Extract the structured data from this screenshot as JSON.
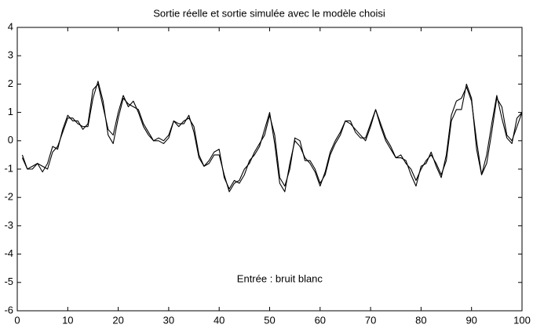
{
  "chart_data": {
    "type": "line",
    "title": "Sortie réelle et sortie simulée avec le modèle choisi",
    "annotations": [
      "Entrée : bruit blanc"
    ],
    "x": [
      1,
      2,
      3,
      4,
      5,
      6,
      7,
      8,
      9,
      10,
      11,
      12,
      13,
      14,
      15,
      16,
      17,
      18,
      19,
      20,
      21,
      22,
      23,
      24,
      25,
      26,
      27,
      28,
      29,
      30,
      31,
      32,
      33,
      34,
      35,
      36,
      37,
      38,
      39,
      40,
      41,
      42,
      43,
      44,
      45,
      46,
      47,
      48,
      49,
      50,
      51,
      52,
      53,
      54,
      55,
      56,
      57,
      58,
      59,
      60,
      61,
      62,
      63,
      64,
      65,
      66,
      67,
      68,
      69,
      70,
      71,
      72,
      73,
      74,
      75,
      76,
      77,
      78,
      79,
      80,
      81,
      82,
      83,
      84,
      85,
      86,
      87,
      88,
      89,
      90,
      91,
      92,
      93,
      94,
      95,
      96,
      97,
      98,
      99,
      100
    ],
    "series": [
      {
        "color": "#000000",
        "values": [
          -0.5,
          -1.0,
          -0.9,
          -0.8,
          -1.1,
          -0.8,
          -0.2,
          -0.3,
          0.4,
          0.9,
          0.7,
          0.7,
          0.4,
          0.6,
          1.8,
          2.0,
          1.2,
          0.4,
          0.2,
          1.0,
          1.6,
          1.2,
          1.4,
          1.0,
          0.5,
          0.2,
          0.0,
          0.1,
          0.0,
          0.2,
          0.7,
          0.6,
          0.6,
          0.9,
          0.3,
          -0.6,
          -0.9,
          -0.7,
          -0.4,
          -0.3,
          -1.3,
          -1.7,
          -1.4,
          -1.5,
          -1.2,
          -0.7,
          -0.5,
          -0.2,
          0.4,
          1.0,
          -0.1,
          -1.5,
          -1.8,
          -0.8,
          0.0,
          -0.2,
          -0.6,
          -0.8,
          -1.1,
          -1.6,
          -1.1,
          -0.4,
          0.0,
          0.3,
          0.7,
          0.7,
          0.3,
          0.1,
          0.1,
          0.6,
          1.1,
          0.5,
          0.0,
          -0.3,
          -0.6,
          -0.6,
          -0.7,
          -1.2,
          -1.6,
          -0.9,
          -0.8,
          -0.4,
          -0.9,
          -1.3,
          -0.5,
          0.9,
          1.4,
          1.5,
          1.9,
          1.4,
          0.0,
          -1.2,
          -0.5,
          0.6,
          1.6,
          0.8,
          0.1,
          -0.1,
          0.8,
          1.0
        ]
      },
      {
        "color": "#000000",
        "values": [
          -0.6,
          -1.0,
          -1.0,
          -0.8,
          -0.9,
          -1.0,
          -0.4,
          -0.2,
          0.3,
          0.8,
          0.8,
          0.6,
          0.5,
          0.5,
          1.5,
          2.1,
          1.4,
          0.2,
          -0.1,
          0.8,
          1.5,
          1.3,
          1.2,
          1.1,
          0.6,
          0.3,
          0.0,
          0.0,
          -0.1,
          0.1,
          0.7,
          0.5,
          0.7,
          0.8,
          0.5,
          -0.5,
          -0.9,
          -0.8,
          -0.5,
          -0.5,
          -1.2,
          -1.8,
          -1.5,
          -1.4,
          -1.0,
          -0.8,
          -0.4,
          -0.1,
          0.2,
          0.9,
          0.2,
          -1.3,
          -1.6,
          -1.0,
          0.1,
          0.0,
          -0.7,
          -0.7,
          -1.0,
          -1.5,
          -1.2,
          -0.5,
          -0.1,
          0.2,
          0.7,
          0.6,
          0.4,
          0.2,
          0.0,
          0.5,
          1.1,
          0.6,
          0.1,
          -0.2,
          -0.6,
          -0.5,
          -0.8,
          -1.0,
          -1.4,
          -1.0,
          -0.7,
          -0.5,
          -0.8,
          -1.2,
          -0.7,
          0.7,
          1.1,
          1.1,
          2.0,
          1.5,
          -0.3,
          -1.2,
          -0.8,
          0.3,
          1.5,
          1.2,
          0.2,
          0.0,
          0.5,
          1.0
        ]
      }
    ],
    "xlim": [
      0,
      100
    ],
    "xticks": [
      0,
      10,
      20,
      30,
      40,
      50,
      60,
      70,
      80,
      90,
      100
    ],
    "ylim": [
      -6,
      4
    ],
    "yticks": [
      -6,
      -5,
      -4,
      -3,
      -2,
      -1,
      0,
      1,
      2,
      3,
      4
    ],
    "grid": false
  }
}
